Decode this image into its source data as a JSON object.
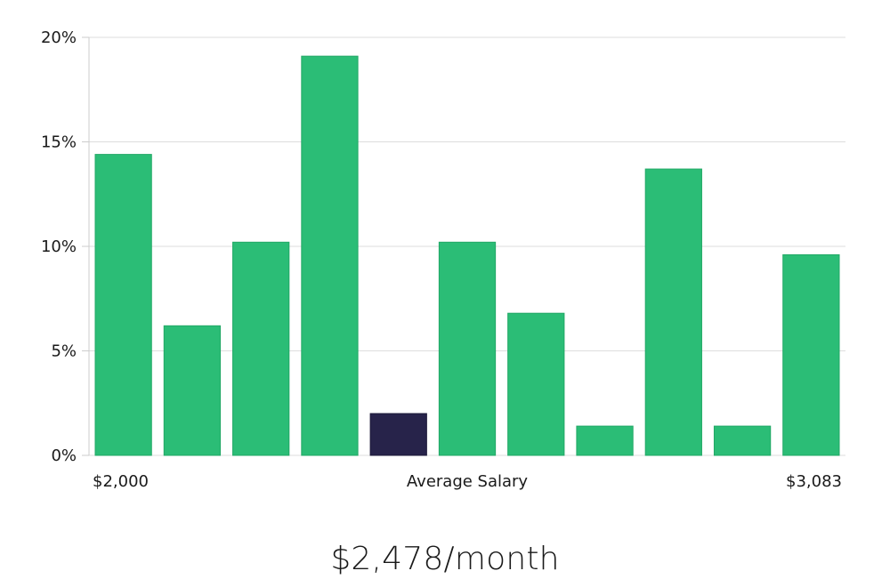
{
  "chart_data": {
    "type": "bar",
    "values": [
      14.4,
      6.2,
      10.2,
      19.1,
      2.0,
      10.2,
      6.8,
      1.4,
      13.7,
      1.4,
      9.6
    ],
    "highlight_index": 4,
    "ylim": [
      0,
      20
    ],
    "y_ticks": [
      "0%",
      "5%",
      "10%",
      "15%",
      "20%"
    ],
    "y_tick_values": [
      0,
      5,
      10,
      15,
      20
    ],
    "x_label_left": "$2,000",
    "x_label_center": "Average Salary",
    "x_label_right": "$3,083",
    "grid": true,
    "colors": {
      "bar": "#2bbd76",
      "highlight": "#27234a",
      "grid": "#dddddd",
      "axis": "#cccccc"
    }
  },
  "average_salary": "$2,478/month"
}
